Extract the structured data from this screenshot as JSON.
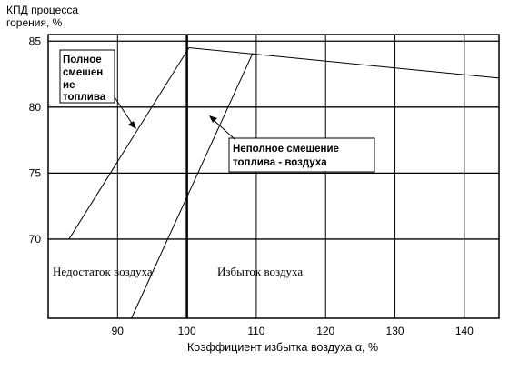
{
  "chart_data": {
    "type": "line",
    "ylabel_lines": [
      "КПД процесса",
      "горения, %"
    ],
    "xlabel": "Коэффициент избытка воздуха α,  %",
    "xlim": [
      80,
      145
    ],
    "ylim": [
      64,
      85.5
    ],
    "x_ticks": [
      90,
      100,
      110,
      120,
      130,
      140
    ],
    "y_ticks": [
      70,
      75,
      80,
      85
    ],
    "grid": "horizontal and vertical",
    "series": [
      {
        "key": "full",
        "points": [
          [
            83,
            70
          ],
          [
            100.3,
            84.5
          ],
          [
            145,
            82.2
          ]
        ]
      },
      {
        "key": "partial",
        "points": [
          [
            92,
            64
          ],
          [
            109.5,
            84.1
          ]
        ]
      }
    ],
    "annotations": {
      "full_mixing": [
        "Полное",
        "смешен",
        "ие",
        "топлива"
      ],
      "partial_mixing": [
        "Неполное смешение",
        "топлива - воздуха"
      ],
      "deficit": "Недостаток воздуха",
      "excess": "Избыток воздуха"
    }
  }
}
